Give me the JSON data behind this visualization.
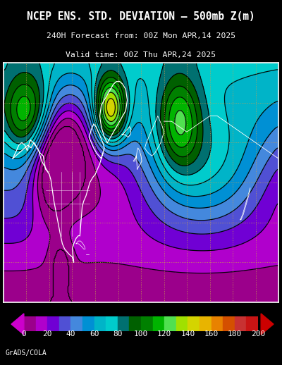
{
  "title_line1": "NCEP ENS. STD. DEVIATION – 500mb Z(m)",
  "title_line2": "240H Forecast from: 00Z Mon APR,14 2025",
  "title_line3": "Valid time: 00Z Thu APR,24 2025",
  "colorbar_label": "GrADS/COLA",
  "colorbar_ticks": [
    0,
    20,
    40,
    60,
    80,
    100,
    120,
    140,
    160,
    180,
    200
  ],
  "bg_color": "#000000",
  "contour_color": "#000000",
  "coastline_color": "#ffffff",
  "grid_color": "#C8A050",
  "colors_list": [
    "#9B008B",
    "#B000CC",
    "#7000D4",
    "#5050D4",
    "#4488DD",
    "#0090D4",
    "#00B4C8",
    "#00CCCC",
    "#007070",
    "#006000",
    "#008000",
    "#00B400",
    "#50E050",
    "#A0E000",
    "#D4D400",
    "#E8B400",
    "#E88200",
    "#D45000",
    "#C83232",
    "#C81414"
  ],
  "levels": [
    0,
    10,
    20,
    30,
    40,
    50,
    60,
    70,
    80,
    90,
    100,
    110,
    120,
    130,
    140,
    150,
    160,
    170,
    180,
    190,
    200
  ]
}
